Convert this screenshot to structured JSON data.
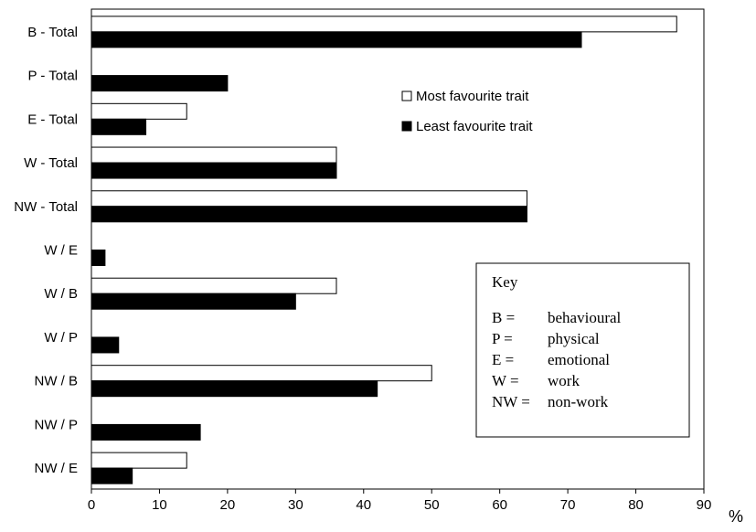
{
  "chart_data": {
    "type": "bar",
    "orientation": "horizontal",
    "categories": [
      "B - Total",
      "P - Total",
      "E - Total",
      "W - Total",
      "NW - Total",
      "W / E",
      "W / B",
      "W / P",
      "NW / B",
      "NW / P",
      "NW / E"
    ],
    "series": [
      {
        "name": "Most favourite trait",
        "color": "#ffffff",
        "values": [
          86,
          0,
          14,
          36,
          64,
          0,
          36,
          0,
          50,
          0,
          14
        ]
      },
      {
        "name": "Least favourite trait",
        "color": "#000000",
        "values": [
          72,
          20,
          8,
          36,
          64,
          2,
          30,
          4,
          42,
          16,
          6
        ]
      }
    ],
    "xlim": [
      0,
      90
    ],
    "xticks": [
      "0",
      "10",
      "20",
      "30",
      "40",
      "50",
      "60",
      "70",
      "80",
      "90"
    ],
    "x_unit": "%",
    "grid": false,
    "legend_position": "upper-right",
    "key_box": {
      "title": "Key",
      "entries": [
        {
          "code": "B =",
          "meaning": "behavioural"
        },
        {
          "code": "P =",
          "meaning": "physical"
        },
        {
          "code": "E =",
          "meaning": "emotional"
        },
        {
          "code": "W =",
          "meaning": "work"
        },
        {
          "code": "NW =",
          "meaning": "non-work"
        }
      ]
    }
  }
}
